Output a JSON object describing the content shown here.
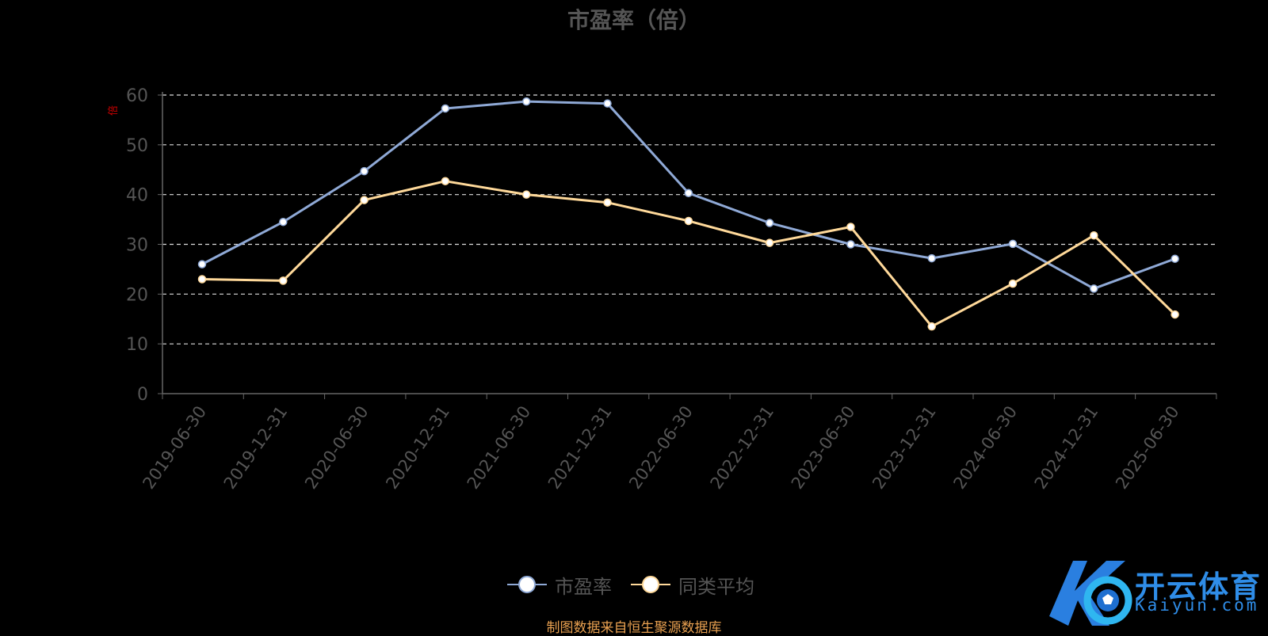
{
  "chart_data": {
    "type": "line",
    "title": "市盈率（倍）",
    "ylabel": "倍",
    "ylim": [
      0,
      60
    ],
    "yticks": [
      0,
      10,
      20,
      30,
      40,
      50,
      60
    ],
    "grid": true,
    "categories": [
      "2019-06-30",
      "2019-12-31",
      "2020-06-30",
      "2020-12-31",
      "2021-06-30",
      "2021-12-31",
      "2022-06-30",
      "2022-12-31",
      "2023-06-30",
      "2023-12-31",
      "2024-06-30",
      "2024-12-31",
      "2025-06-30"
    ],
    "series": [
      {
        "name": "市盈率",
        "color": "#8fa9d6",
        "values": [
          26.0,
          34.5,
          44.7,
          57.3,
          58.7,
          58.3,
          40.3,
          34.3,
          30.0,
          27.2,
          30.1,
          21.1,
          27.1
        ]
      },
      {
        "name": "同类平均",
        "color": "#ffd99a",
        "values": [
          23.0,
          22.7,
          38.9,
          42.7,
          40.0,
          38.4,
          34.7,
          30.3,
          33.5,
          13.5,
          22.1,
          31.8,
          15.9
        ]
      }
    ],
    "legend_position": "bottom-center"
  },
  "source": "制图数据来自恒生聚源数据库",
  "watermark": {
    "name_cn": "开云体育",
    "name_en": "Kaiyun.com",
    "color": "#2f8de8"
  }
}
